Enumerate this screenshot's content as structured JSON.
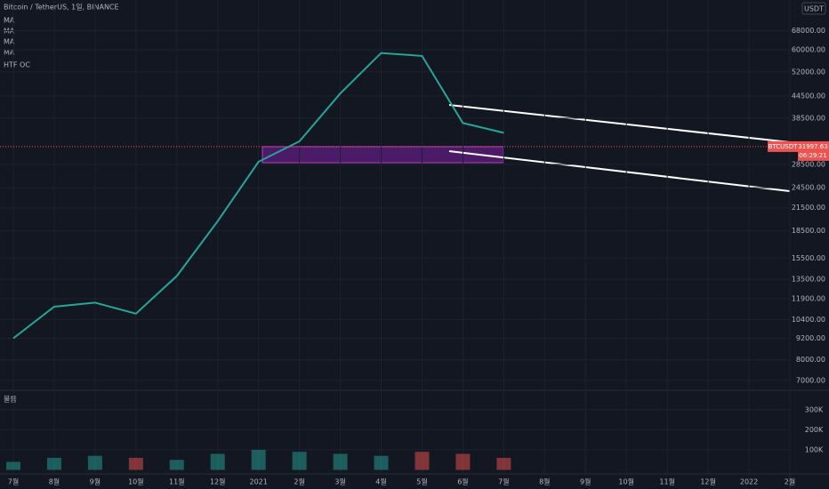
{
  "chart_data": {
    "type": "line",
    "title": "Bitcoin / TetherUS, 1일, BINANCE",
    "indicators": [
      "MA",
      "MA",
      "MA",
      "MA",
      "HTF OC"
    ],
    "currency": "USDT",
    "symbol": "BTCUSDT",
    "last_price": 31997.63,
    "countdown": "06:29:21",
    "volume_title": "볼륨",
    "log_scale": true,
    "grid": true,
    "categories": [
      "7월",
      "8월",
      "9월",
      "10월",
      "11월",
      "12월",
      "2021",
      "2월",
      "3월",
      "4월",
      "5월",
      "6월",
      "7월",
      "8월",
      "9월",
      "10월",
      "11월",
      "12월",
      "2022",
      "2월"
    ],
    "series": [
      {
        "name": "BTCUSDT",
        "color": "#26a69a",
        "values": [
          9200,
          11300,
          11600,
          10800,
          13800,
          19700,
          29000,
          33100,
          45200,
          58800,
          57700,
          37300,
          35000,
          null,
          null,
          null,
          null,
          null,
          null,
          null
        ]
      }
    ],
    "ylim": [
      6600,
      83000
    ],
    "yticks": [
      {
        "value": 68000,
        "label": "68000.00"
      },
      {
        "value": 60000,
        "label": "60000.00"
      },
      {
        "value": 52000,
        "label": "52000.00"
      },
      {
        "value": 44500,
        "label": "44500.00"
      },
      {
        "value": 38500,
        "label": "38500.00"
      },
      {
        "value": 28500,
        "label": "28500.00"
      },
      {
        "value": 24500,
        "label": "24500.00"
      },
      {
        "value": 21500,
        "label": "21500.00"
      },
      {
        "value": 18500,
        "label": "18500.00"
      },
      {
        "value": 15500,
        "label": "15500.00"
      },
      {
        "value": 13500,
        "label": "13500.00"
      },
      {
        "value": 11900,
        "label": "11900.00"
      },
      {
        "value": 10400,
        "label": "10400.00"
      },
      {
        "value": 9200,
        "label": "9200.00"
      },
      {
        "value": 8000,
        "label": "8000.00"
      },
      {
        "value": 7000,
        "label": "7000.00"
      }
    ],
    "volume": [
      40000,
      60000,
      70000,
      60000,
      50000,
      80000,
      100000,
      90000,
      80000,
      70000,
      90000,
      80000,
      60000,
      null,
      null,
      null,
      null,
      null,
      null,
      null
    ],
    "volume_ylim": [
      0,
      370000
    ],
    "volume_ticks": [
      {
        "value": 300000,
        "label": "300K"
      },
      {
        "value": 200000,
        "label": "200K"
      },
      {
        "value": 100000,
        "label": "100K"
      }
    ]
  }
}
